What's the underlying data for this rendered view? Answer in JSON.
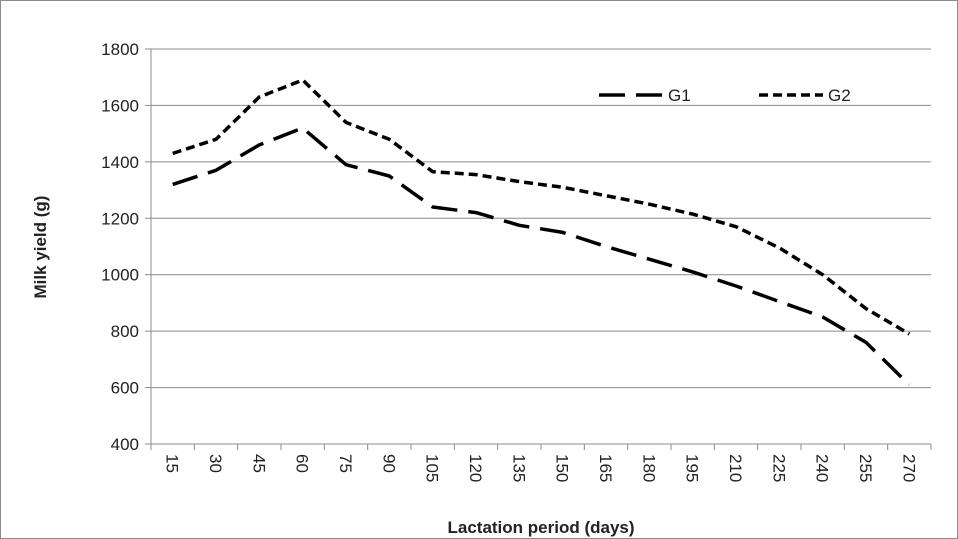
{
  "chart_data": {
    "type": "line",
    "title": "",
    "xlabel": "Lactation period (days)",
    "ylabel": "Milk yield (g)",
    "ylim": [
      400,
      1800
    ],
    "yticks": [
      400,
      600,
      800,
      1000,
      1200,
      1400,
      1600,
      1800
    ],
    "categories": [
      "15",
      "30",
      "45",
      "60",
      "75",
      "90",
      "105",
      "120",
      "135",
      "150",
      "165",
      "180",
      "195",
      "210",
      "225",
      "240",
      "255",
      "270"
    ],
    "grid": "horizontal",
    "legend_position": "top-right",
    "series": [
      {
        "name": "G1",
        "style": "long-dash",
        "color": "#000000",
        "values": [
          1320,
          1370,
          1460,
          1520,
          1390,
          1350,
          1240,
          1220,
          1175,
          1150,
          1100,
          1055,
          1010,
          960,
          905,
          850,
          760,
          610
        ]
      },
      {
        "name": "G2",
        "style": "short-dash",
        "color": "#000000",
        "values": [
          1430,
          1480,
          1630,
          1690,
          1540,
          1480,
          1365,
          1355,
          1330,
          1310,
          1280,
          1250,
          1215,
          1170,
          1095,
          1000,
          880,
          790
        ]
      }
    ]
  }
}
